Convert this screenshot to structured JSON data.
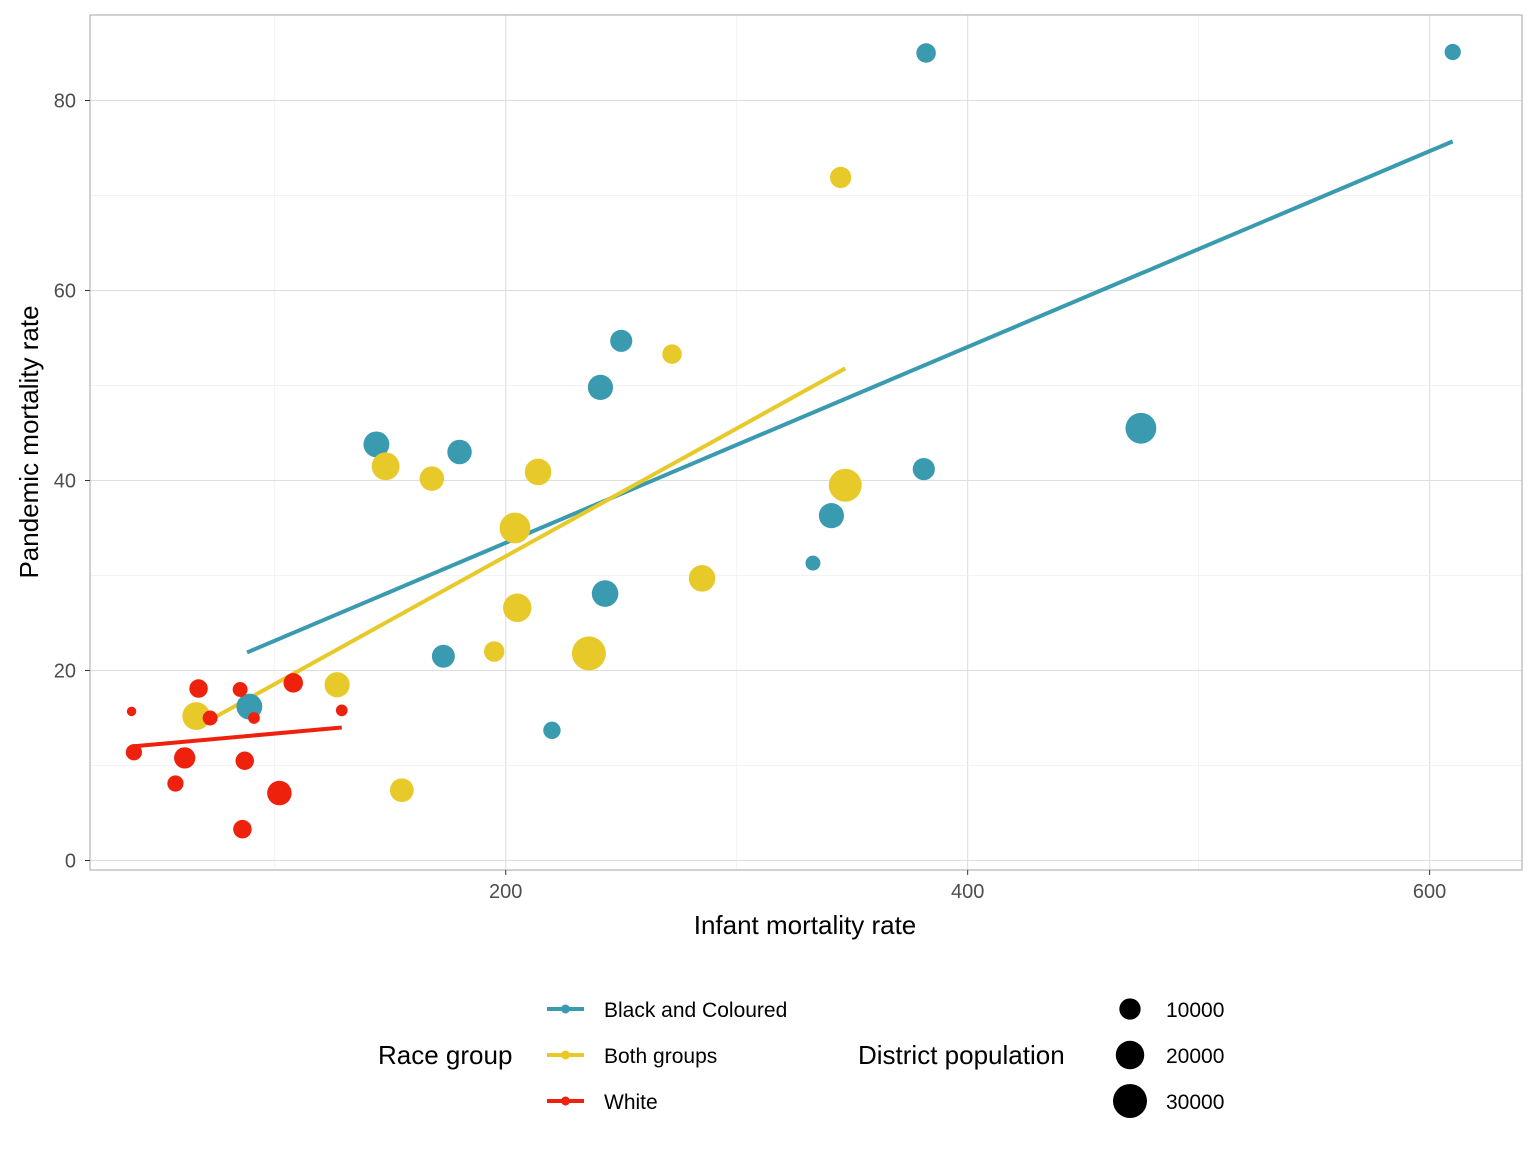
{
  "chart_data": {
    "type": "scatter",
    "title": "",
    "xlabel": "Infant mortality rate",
    "ylabel": "Pandemic mortality rate",
    "xlim": [
      20,
      640
    ],
    "ylim": [
      -1,
      89
    ],
    "x_ticks": [
      200,
      400,
      600
    ],
    "y_ticks": [
      0,
      20,
      40,
      60,
      80
    ],
    "x_tick_labels": [
      "200",
      "400",
      "600"
    ],
    "y_tick_labels": [
      "0",
      "20",
      "40",
      "60",
      "80"
    ],
    "grid": true,
    "legend_placement": "bottom",
    "color_legend": {
      "title": "Race group",
      "entries": [
        {
          "label": "Black and Coloured",
          "color": "#3A9AB0"
        },
        {
          "label": "Both groups",
          "color": "#E8C92A"
        },
        {
          "label": "White",
          "color": "#EE220C"
        }
      ]
    },
    "size_legend": {
      "title": "District population",
      "entries": [
        {
          "label": "10000",
          "value": 10000
        },
        {
          "label": "20000",
          "value": 20000
        },
        {
          "label": "30000",
          "value": 30000
        }
      ]
    },
    "series": [
      {
        "name": "Black and Coloured",
        "color": "#3A9AB0",
        "points": [
          {
            "x": 89,
            "y": 16.2,
            "pop": 16000
          },
          {
            "x": 144,
            "y": 43.8,
            "pop": 16000
          },
          {
            "x": 180,
            "y": 43.0,
            "pop": 14000
          },
          {
            "x": 173,
            "y": 21.5,
            "pop": 12000
          },
          {
            "x": 220,
            "y": 13.7,
            "pop": 6000
          },
          {
            "x": 241,
            "y": 49.8,
            "pop": 15000
          },
          {
            "x": 250,
            "y": 54.7,
            "pop": 11000
          },
          {
            "x": 243,
            "y": 28.1,
            "pop": 17000
          },
          {
            "x": 333,
            "y": 31.3,
            "pop": 4000
          },
          {
            "x": 341,
            "y": 36.3,
            "pop": 15000
          },
          {
            "x": 382,
            "y": 85.0,
            "pop": 8000
          },
          {
            "x": 381,
            "y": 41.2,
            "pop": 11000
          },
          {
            "x": 475,
            "y": 45.5,
            "pop": 24000
          },
          {
            "x": 610,
            "y": 85.1,
            "pop": 5000
          }
        ],
        "trend": [
          {
            "x": 88,
            "y": 21.9
          },
          {
            "x": 610,
            "y": 75.7
          }
        ]
      },
      {
        "name": "Both groups",
        "color": "#E8C92A",
        "points": [
          {
            "x": 66,
            "y": 15.2,
            "pop": 19000
          },
          {
            "x": 127,
            "y": 18.5,
            "pop": 15000
          },
          {
            "x": 148,
            "y": 41.5,
            "pop": 19000
          },
          {
            "x": 155,
            "y": 7.4,
            "pop": 13000
          },
          {
            "x": 168,
            "y": 40.2,
            "pop": 14000
          },
          {
            "x": 195,
            "y": 22.0,
            "pop": 9000
          },
          {
            "x": 204,
            "y": 35.0,
            "pop": 24000
          },
          {
            "x": 205,
            "y": 26.6,
            "pop": 20000
          },
          {
            "x": 214,
            "y": 40.9,
            "pop": 17000
          },
          {
            "x": 236,
            "y": 21.8,
            "pop": 30000
          },
          {
            "x": 272,
            "y": 53.3,
            "pop": 8000
          },
          {
            "x": 285,
            "y": 29.7,
            "pop": 17000
          },
          {
            "x": 345,
            "y": 71.9,
            "pop": 10000
          },
          {
            "x": 347,
            "y": 39.5,
            "pop": 28000
          }
        ],
        "trend": [
          {
            "x": 66,
            "y": 14.0
          },
          {
            "x": 347,
            "y": 51.8
          }
        ]
      },
      {
        "name": "White",
        "color": "#EE220C",
        "points": [
          {
            "x": 38,
            "y": 15.7,
            "pop": 1000
          },
          {
            "x": 39,
            "y": 11.4,
            "pop": 5000
          },
          {
            "x": 57,
            "y": 8.1,
            "pop": 5000
          },
          {
            "x": 61,
            "y": 10.8,
            "pop": 10000
          },
          {
            "x": 72,
            "y": 15.0,
            "pop": 4000
          },
          {
            "x": 67,
            "y": 18.1,
            "pop": 7000
          },
          {
            "x": 85,
            "y": 18.0,
            "pop": 4000
          },
          {
            "x": 87,
            "y": 10.5,
            "pop": 7000
          },
          {
            "x": 91,
            "y": 15.0,
            "pop": 2000
          },
          {
            "x": 86,
            "y": 3.3,
            "pop": 7000
          },
          {
            "x": 102,
            "y": 7.1,
            "pop": 14000
          },
          {
            "x": 108,
            "y": 18.7,
            "pop": 8000
          },
          {
            "x": 129,
            "y": 15.8,
            "pop": 2000
          }
        ],
        "trend": [
          {
            "x": 38,
            "y": 12.0
          },
          {
            "x": 129,
            "y": 14.0
          }
        ]
      }
    ]
  }
}
